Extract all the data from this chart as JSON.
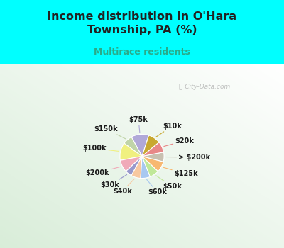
{
  "title": "Income distribution in O'Hara\nTownship, PA (%)",
  "subtitle": "Multirace residents",
  "labels": [
    "$75k",
    "$150k",
    "$100k",
    "$200k",
    "$30k",
    "$40k",
    "$60k",
    "$50k",
    "$125k",
    "> $200k",
    "$20k",
    "$10k"
  ],
  "values": [
    13,
    7,
    13,
    9,
    5,
    7,
    7,
    7,
    8,
    7,
    8,
    9
  ],
  "colors": [
    "#b0a8d8",
    "#c0d4a8",
    "#f0f080",
    "#f0aab8",
    "#9898cc",
    "#f8c8a0",
    "#a8c8f0",
    "#c0e898",
    "#f8b870",
    "#c8c0b0",
    "#e88888",
    "#c8a830"
  ],
  "line_colors": [
    "#b0a8d8",
    "#c0d4a8",
    "#f0f080",
    "#f0aab8",
    "#9898cc",
    "#f8c8a0",
    "#a8c8f0",
    "#c0e898",
    "#f8b870",
    "#c8c0b0",
    "#e88888",
    "#c8a830"
  ],
  "bg_top": "#00ffff",
  "title_color": "#222222",
  "subtitle_color": "#2aaa88",
  "startangle": 72,
  "figsize": [
    4.0,
    3.5
  ],
  "dpi": 100
}
